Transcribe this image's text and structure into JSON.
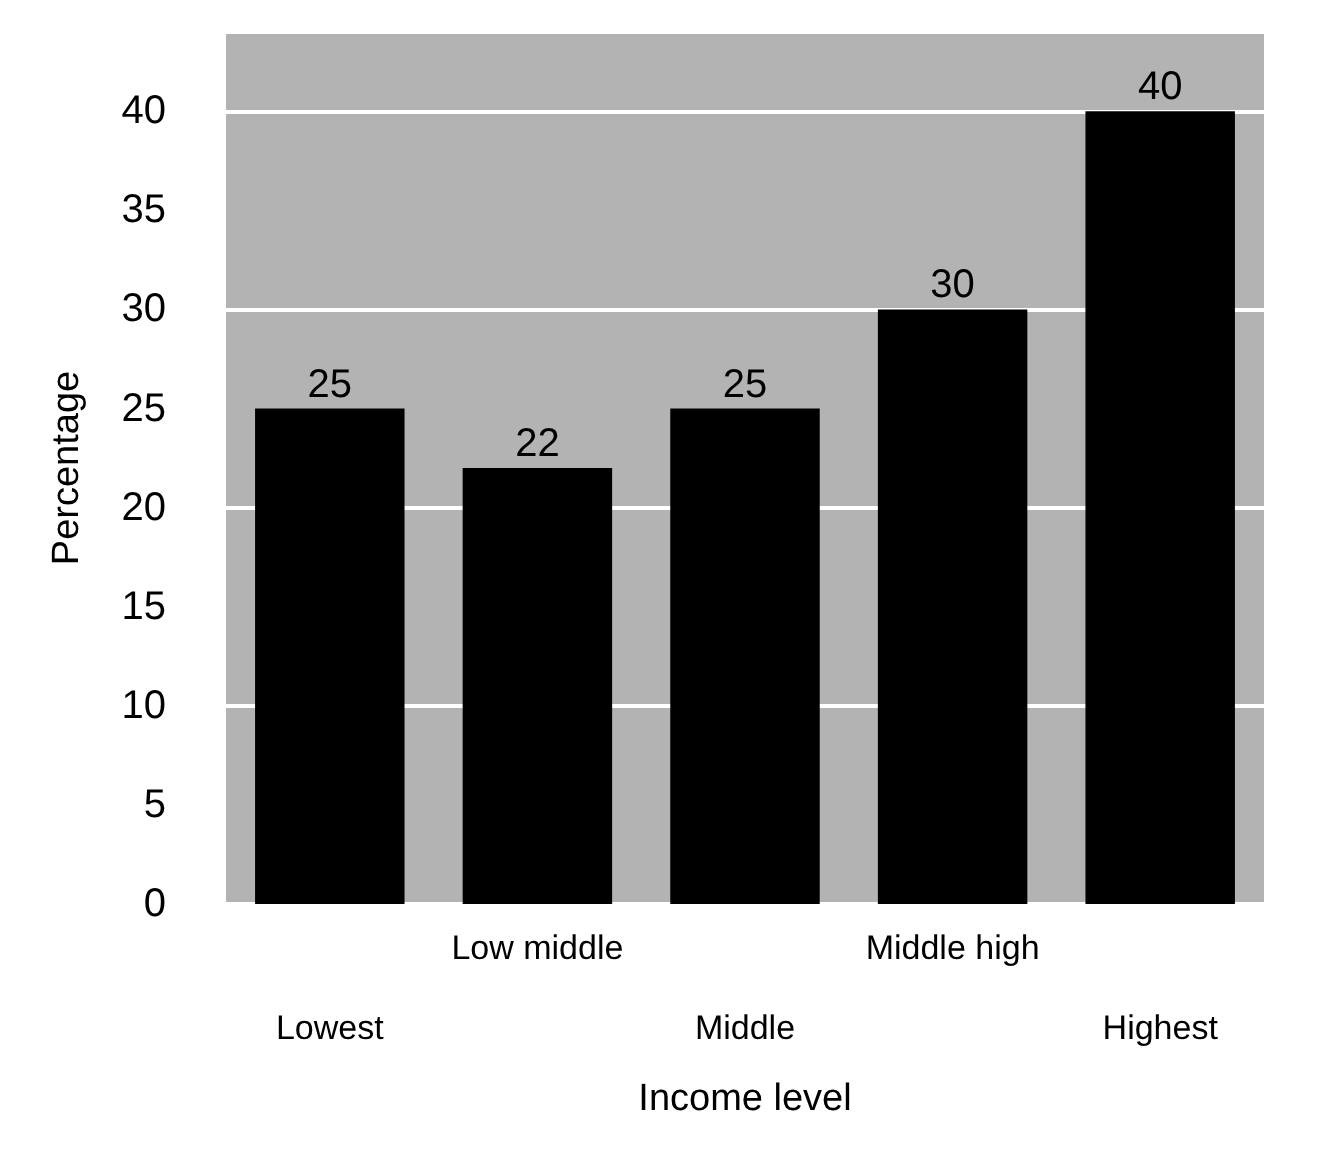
{
  "chart_data": {
    "type": "bar",
    "xlabel": "Income level",
    "ylabel": "Percentage",
    "categories": [
      "Lowest",
      "Low middle",
      "Middle",
      "Middle high",
      "Highest"
    ],
    "values": [
      25,
      22,
      25,
      30,
      40
    ],
    "color": "#000000",
    "ylim": [
      0,
      44
    ],
    "yticks": [
      0,
      5,
      10,
      15,
      20,
      25,
      30,
      35,
      40
    ],
    "grid": "y",
    "data_labels": true
  }
}
